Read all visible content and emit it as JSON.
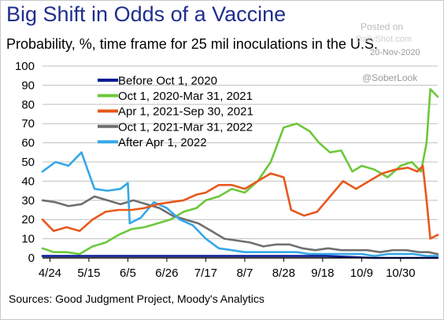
{
  "header": {
    "title": "Big Shift in Odds of a Vaccine",
    "subtitle": "Probability, %, time frame for 25 mil inoculations in the U.S."
  },
  "watermark": {
    "posted": "Posted on",
    "site": "DailyShot.com",
    "date": "20-Nov-2020",
    "handle": "@SoberLook"
  },
  "footer": {
    "source": "Sources: Good Judgment Project, Moody's Analytics"
  },
  "chart_data": {
    "type": "line",
    "title": "Big Shift in Odds of a Vaccine",
    "ylabel": "Probability, %",
    "ylim": [
      0,
      100
    ],
    "yticks": [
      0,
      10,
      20,
      30,
      40,
      50,
      60,
      70,
      80,
      90,
      100
    ],
    "xlim": [
      "2020-04-20",
      "2020-11-19"
    ],
    "xticks": [
      "2020-04-24",
      "2020-05-15",
      "2020-06-05",
      "2020-06-26",
      "2020-07-17",
      "2020-08-07",
      "2020-08-28",
      "2020-09-18",
      "2020-10-09",
      "2020-10-30"
    ],
    "xtick_labels": [
      "4/24",
      "5/15",
      "6/5",
      "6/26",
      "7/17",
      "8/7",
      "8/28",
      "9/18",
      "10/9",
      "10/30"
    ],
    "grid": "horizontal",
    "legend_position": "top-left",
    "series": [
      {
        "name": "Before Oct 1, 2020",
        "color": "#0b1d96",
        "x": [
          "2020-04-20",
          "2020-06-20",
          "2020-08-20",
          "2020-09-20",
          "2020-10-15",
          "2020-11-19"
        ],
        "y": [
          1,
          1,
          1,
          1,
          0,
          0
        ]
      },
      {
        "name": "Oct 1, 2020-Mar 31, 2021",
        "color": "#6cc83a",
        "x": [
          "2020-04-20",
          "2020-04-26",
          "2020-05-03",
          "2020-05-10",
          "2020-05-17",
          "2020-05-24",
          "2020-05-31",
          "2020-06-07",
          "2020-06-14",
          "2020-06-21",
          "2020-06-28",
          "2020-07-05",
          "2020-07-12",
          "2020-07-17",
          "2020-07-24",
          "2020-07-31",
          "2020-08-07",
          "2020-08-14",
          "2020-08-21",
          "2020-08-28",
          "2020-09-04",
          "2020-09-11",
          "2020-09-16",
          "2020-09-22",
          "2020-09-28",
          "2020-10-04",
          "2020-10-09",
          "2020-10-16",
          "2020-10-23",
          "2020-10-30",
          "2020-11-05",
          "2020-11-10",
          "2020-11-13",
          "2020-11-15",
          "2020-11-19"
        ],
        "y": [
          5,
          3,
          3,
          2,
          6,
          8,
          12,
          15,
          16,
          18,
          20,
          24,
          26,
          30,
          32,
          36,
          34,
          40,
          50,
          68,
          70,
          66,
          60,
          55,
          56,
          45,
          48,
          46,
          42,
          48,
          50,
          45,
          60,
          88,
          84
        ]
      },
      {
        "name": "Apr 1, 2021-Sep 30, 2021",
        "color": "#e8581c",
        "x": [
          "2020-04-20",
          "2020-04-26",
          "2020-05-03",
          "2020-05-10",
          "2020-05-17",
          "2020-05-24",
          "2020-05-31",
          "2020-06-07",
          "2020-06-14",
          "2020-06-21",
          "2020-06-28",
          "2020-07-05",
          "2020-07-12",
          "2020-07-17",
          "2020-07-24",
          "2020-07-31",
          "2020-08-07",
          "2020-08-14",
          "2020-08-21",
          "2020-08-28",
          "2020-09-01",
          "2020-09-08",
          "2020-09-15",
          "2020-09-22",
          "2020-09-29",
          "2020-10-06",
          "2020-10-13",
          "2020-10-20",
          "2020-10-27",
          "2020-11-03",
          "2020-11-08",
          "2020-11-11",
          "2020-11-13",
          "2020-11-15",
          "2020-11-19"
        ],
        "y": [
          20,
          14,
          16,
          14,
          20,
          24,
          25,
          25,
          26,
          28,
          29,
          30,
          33,
          34,
          38,
          38,
          36,
          40,
          44,
          42,
          25,
          22,
          24,
          32,
          40,
          36,
          40,
          44,
          46,
          47,
          45,
          48,
          30,
          10,
          12
        ]
      },
      {
        "name": "Oct 1, 2021-Mar 31, 2022",
        "color": "#6f6f6f",
        "x": [
          "2020-04-20",
          "2020-04-27",
          "2020-05-04",
          "2020-05-11",
          "2020-05-18",
          "2020-05-25",
          "2020-06-01",
          "2020-06-08",
          "2020-06-15",
          "2020-06-22",
          "2020-06-29",
          "2020-07-06",
          "2020-07-13",
          "2020-07-20",
          "2020-07-27",
          "2020-08-03",
          "2020-08-10",
          "2020-08-17",
          "2020-08-24",
          "2020-08-31",
          "2020-09-07",
          "2020-09-14",
          "2020-09-21",
          "2020-09-28",
          "2020-10-05",
          "2020-10-12",
          "2020-10-19",
          "2020-10-26",
          "2020-11-02",
          "2020-11-09",
          "2020-11-14",
          "2020-11-19"
        ],
        "y": [
          30,
          29,
          27,
          28,
          32,
          30,
          28,
          30,
          28,
          26,
          22,
          20,
          18,
          14,
          10,
          9,
          8,
          6,
          7,
          7,
          5,
          4,
          5,
          4,
          4,
          4,
          3,
          4,
          4,
          3,
          3,
          2
        ]
      },
      {
        "name": "After Apr 1, 2022",
        "color": "#35a7e8",
        "x": [
          "2020-04-20",
          "2020-04-27",
          "2020-05-04",
          "2020-05-11",
          "2020-05-18",
          "2020-05-25",
          "2020-06-01",
          "2020-06-05",
          "2020-06-06",
          "2020-06-12",
          "2020-06-19",
          "2020-06-26",
          "2020-07-03",
          "2020-07-10",
          "2020-07-17",
          "2020-07-24",
          "2020-07-31",
          "2020-08-07",
          "2020-08-14",
          "2020-08-21",
          "2020-08-28",
          "2020-09-04",
          "2020-09-11",
          "2020-09-18",
          "2020-09-25",
          "2020-10-02",
          "2020-10-09",
          "2020-10-16",
          "2020-10-23",
          "2020-10-30",
          "2020-11-06",
          "2020-11-13",
          "2020-11-19"
        ],
        "y": [
          45,
          50,
          48,
          55,
          36,
          35,
          36,
          39,
          18,
          21,
          29,
          26,
          20,
          17,
          10,
          5,
          4,
          3,
          3,
          3,
          3,
          3,
          2,
          2,
          2,
          2,
          2,
          1,
          2,
          2,
          2,
          1,
          1
        ]
      }
    ]
  }
}
